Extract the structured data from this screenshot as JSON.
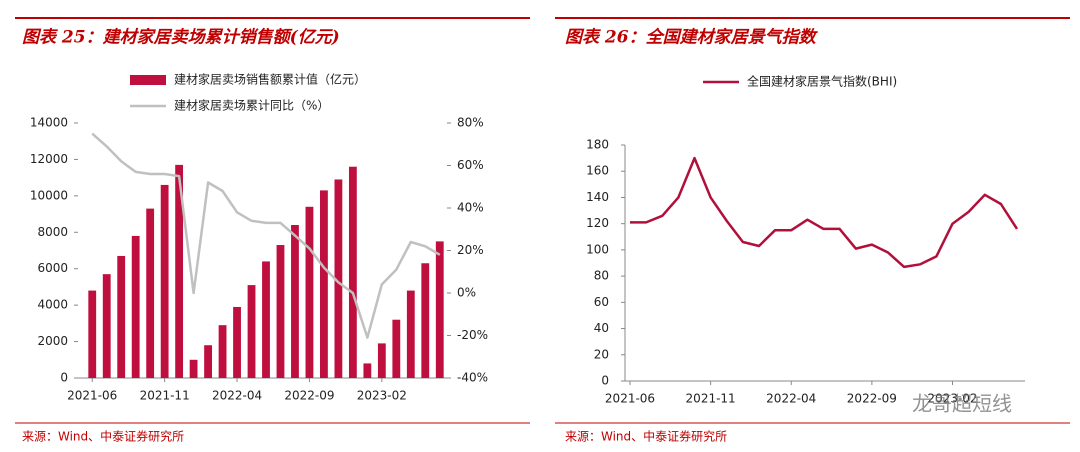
{
  "chart_data": [
    {
      "type": "bar",
      "title": "图表 25：建材家居卖场累计销售额(亿元)",
      "source": "来源：Wind、中泰证券研究所",
      "categories": [
        "2021-06",
        null,
        null,
        null,
        null,
        "2021-11",
        null,
        null,
        null,
        null,
        "2022-04",
        null,
        null,
        null,
        null,
        "2022-09",
        null,
        null,
        null,
        null,
        "2023-02",
        null,
        null,
        null,
        null
      ],
      "series": [
        {
          "name": "建材家居卖场销售额累计值（亿元）",
          "type": "bar",
          "color": "#be0f3e",
          "values": [
            4800,
            5700,
            6700,
            7800,
            9300,
            10600,
            11700,
            1000,
            1800,
            2900,
            3900,
            5100,
            6400,
            7300,
            8400,
            9400,
            10300,
            10900,
            11600,
            800,
            1900,
            3200,
            4800,
            6300,
            7500
          ]
        },
        {
          "name": "建材家居卖场累计同比（%）",
          "type": "line",
          "axis": "y2",
          "color": "#c0c0c0",
          "values": [
            75,
            69,
            62,
            57,
            56,
            56,
            55,
            0,
            52,
            48,
            38,
            34,
            33,
            33,
            27,
            21,
            12,
            5,
            0,
            -21,
            4,
            11,
            24,
            22,
            18
          ]
        }
      ],
      "ylim": [
        0,
        14000
      ],
      "yticks": [
        0,
        2000,
        4000,
        6000,
        8000,
        10000,
        12000,
        14000
      ],
      "y2lim": [
        -40,
        80
      ],
      "y2ticks": [
        {
          "value": -40,
          "label": "-40%"
        },
        {
          "value": -20,
          "label": "-20%"
        },
        {
          "value": 0,
          "label": "0%"
        },
        {
          "value": 20,
          "label": "20%"
        },
        {
          "value": 40,
          "label": "40%"
        },
        {
          "value": 60,
          "label": "60%"
        },
        {
          "value": 80,
          "label": "80%"
        }
      ]
    },
    {
      "type": "line",
      "title": "图表 26：全国建材家居景气指数",
      "source": "来源：Wind、中泰证券研究所",
      "watermark": "龙哥超短线",
      "categories": [
        "2021-06",
        null,
        null,
        null,
        null,
        "2021-11",
        null,
        null,
        null,
        null,
        "2022-04",
        null,
        null,
        null,
        null,
        "2022-09",
        null,
        null,
        null,
        null,
        "2023-02",
        null,
        null,
        null,
        null
      ],
      "series": [
        {
          "name": "全国建材家居景气指数(BHI)",
          "type": "line",
          "color": "#b0103a",
          "values": [
            121,
            121,
            126,
            140,
            170,
            140,
            122,
            106,
            103,
            115,
            115,
            123,
            116,
            116,
            101,
            104,
            98,
            87,
            89,
            95,
            120,
            129,
            142,
            135,
            116
          ]
        }
      ],
      "ylim": [
        0,
        180
      ],
      "yticks": [
        0,
        20,
        40,
        60,
        80,
        100,
        120,
        140,
        160,
        180
      ]
    }
  ]
}
